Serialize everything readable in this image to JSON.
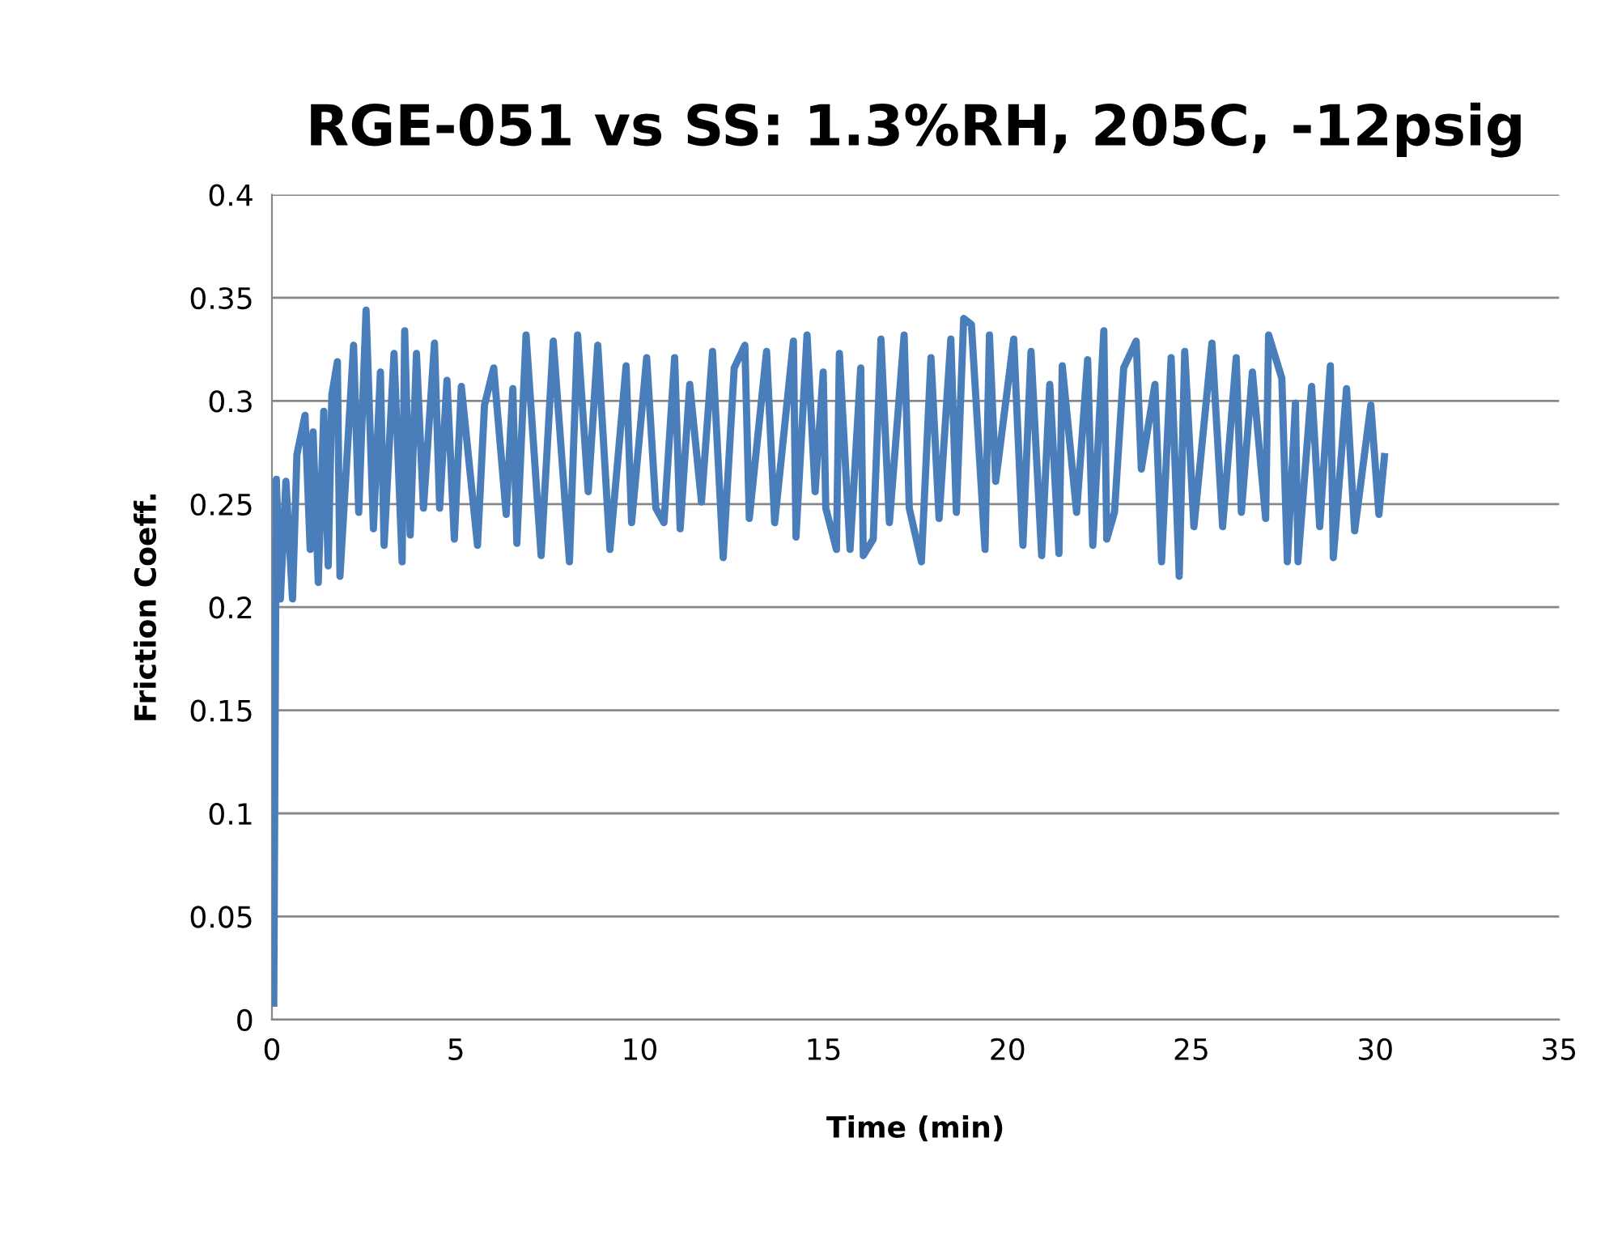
{
  "chart_data": {
    "type": "line",
    "title": "RGE-051 vs SS: 1.3%RH, 205C, -12psig",
    "xlabel": "Time (min)",
    "ylabel": "Friction Coeff.",
    "xlim": [
      0,
      35
    ],
    "xticks": [
      0,
      5,
      10,
      15,
      20,
      25,
      30,
      35
    ],
    "ylim": [
      0,
      0.4
    ],
    "yticks": [
      0,
      0.05,
      0.1,
      0.15,
      0.2,
      0.25,
      0.3,
      0.35,
      0.4
    ],
    "grid": "y",
    "legend": false,
    "marker": "none",
    "line_style": "solid",
    "series": [
      {
        "color": "#4a7ebb",
        "x": [
          0.05,
          0.12,
          0.23,
          0.38,
          0.56,
          0.68,
          0.9,
          1.04,
          1.12,
          1.26,
          1.41,
          1.53,
          1.63,
          1.78,
          1.85,
          2.22,
          2.36,
          2.56,
          2.76,
          2.95,
          3.05,
          3.32,
          3.54,
          3.61,
          3.76,
          3.93,
          4.12,
          4.42,
          4.56,
          4.76,
          4.96,
          5.15,
          5.59,
          5.78,
          6.03,
          6.37,
          6.55,
          6.66,
          6.91,
          7.32,
          7.65,
          8.09,
          8.31,
          8.6,
          8.86,
          9.19,
          9.63,
          9.78,
          10.19,
          10.44,
          10.66,
          10.95,
          11.1,
          11.36,
          11.68,
          11.98,
          12.27,
          12.57,
          12.86,
          12.98,
          13.45,
          13.67,
          14.18,
          14.25,
          14.55,
          14.77,
          14.99,
          15.06,
          15.35,
          15.43,
          15.72,
          16.01,
          16.08,
          16.35,
          16.56,
          16.79,
          17.19,
          17.33,
          17.66,
          17.92,
          18.14,
          18.46,
          18.61,
          18.81,
          19.02,
          19.39,
          19.51,
          19.68,
          20.17,
          20.42,
          20.64,
          20.93,
          21.15,
          21.4,
          21.49,
          21.88,
          22.18,
          22.32,
          22.62,
          22.7,
          22.91,
          23.16,
          23.5,
          23.64,
          24.01,
          24.19,
          24.45,
          24.67,
          24.82,
          25.07,
          25.56,
          25.85,
          26.22,
          26.36,
          26.66,
          27.02,
          27.1,
          27.46,
          27.61,
          27.83,
          27.9,
          28.27,
          28.49,
          28.78,
          28.86,
          29.22,
          29.44,
          29.88,
          30.1,
          30.25
        ],
        "values": [
          0.008,
          0.262,
          0.204,
          0.261,
          0.204,
          0.274,
          0.293,
          0.228,
          0.285,
          0.212,
          0.295,
          0.22,
          0.303,
          0.319,
          0.215,
          0.327,
          0.246,
          0.344,
          0.238,
          0.314,
          0.23,
          0.323,
          0.222,
          0.334,
          0.235,
          0.323,
          0.248,
          0.328,
          0.248,
          0.31,
          0.233,
          0.307,
          0.23,
          0.298,
          0.316,
          0.245,
          0.306,
          0.231,
          0.332,
          0.225,
          0.329,
          0.222,
          0.332,
          0.256,
          0.327,
          0.228,
          0.317,
          0.241,
          0.321,
          0.248,
          0.241,
          0.321,
          0.238,
          0.308,
          0.251,
          0.324,
          0.224,
          0.316,
          0.327,
          0.243,
          0.324,
          0.241,
          0.329,
          0.234,
          0.332,
          0.256,
          0.314,
          0.248,
          0.228,
          0.323,
          0.228,
          0.316,
          0.225,
          0.233,
          0.33,
          0.241,
          0.332,
          0.248,
          0.222,
          0.321,
          0.243,
          0.33,
          0.246,
          0.34,
          0.337,
          0.228,
          0.332,
          0.261,
          0.33,
          0.23,
          0.324,
          0.225,
          0.308,
          0.226,
          0.317,
          0.246,
          0.32,
          0.23,
          0.334,
          0.233,
          0.246,
          0.316,
          0.329,
          0.267,
          0.308,
          0.222,
          0.321,
          0.215,
          0.324,
          0.239,
          0.328,
          0.239,
          0.321,
          0.246,
          0.314,
          0.243,
          0.332,
          0.311,
          0.222,
          0.299,
          0.222,
          0.307,
          0.239,
          0.317,
          0.224,
          0.306,
          0.237,
          0.298,
          0.245,
          0.273
        ]
      }
    ]
  }
}
